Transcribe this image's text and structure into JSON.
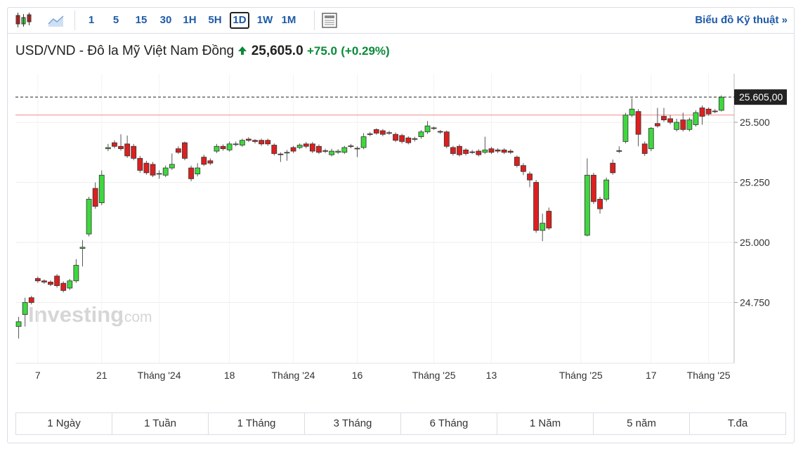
{
  "toolbar": {
    "intervals": [
      "1",
      "5",
      "15",
      "30",
      "1H",
      "5H",
      "1D",
      "1W",
      "1M"
    ],
    "selected_interval": 6,
    "link": "Biểu đồ Kỹ thuật",
    "link_icon": "»"
  },
  "header": {
    "name": "USD/VND - Đô la Mỹ Việt Nam Đồng",
    "price": "25,605.0",
    "change": "+75.0",
    "change_percent": "(+0.29%)"
  },
  "watermark": {
    "brand": "Investing",
    "suffix": ".com"
  },
  "chart_data": {
    "type": "candlestick",
    "open": [
      24650,
      24700,
      24770,
      24850,
      24840,
      24835,
      24860,
      24830,
      24810,
      24840,
      24975,
      25035,
      25225,
      25165,
      25390,
      25415,
      25400,
      25410,
      25400,
      25350,
      25330,
      25325,
      25285,
      25280,
      25310,
      25390,
      25415,
      25310,
      25285,
      25355,
      25340,
      25380,
      25400,
      25385,
      25408,
      25405,
      25430,
      25425,
      25425,
      25425,
      25405,
      25368,
      25373,
      25395,
      25395,
      25410,
      25410,
      25400,
      25382,
      25365,
      25375,
      25375,
      25402,
      25392,
      25395,
      25452,
      25470,
      25465,
      25457,
      25450,
      25445,
      25435,
      25432,
      25440,
      25460,
      25477,
      25462,
      25460,
      25395,
      25400,
      25385,
      25377,
      25380,
      25375,
      25390,
      25385,
      25385,
      25380,
      25355,
      25320,
      25285,
      25250,
      25050,
      25130,
      null,
      null,
      null,
      null,
      null,
      25030,
      25280,
      25180,
      25180,
      25330,
      25382,
      25420,
      25530,
      25545,
      25410,
      25390,
      25495,
      25525,
      25515,
      25470,
      25510,
      25470,
      25490,
      25560,
      25555,
      25547,
      25550
    ],
    "high": [
      24690,
      24770,
      24778,
      24858,
      24846,
      24842,
      24868,
      24838,
      24848,
      24930,
      25010,
      25190,
      25250,
      25300,
      25410,
      25425,
      25450,
      25445,
      25410,
      25360,
      25340,
      25335,
      25300,
      25320,
      25370,
      25400,
      25420,
      25320,
      25330,
      25365,
      25350,
      25410,
      25408,
      25420,
      25420,
      25432,
      25438,
      25430,
      25432,
      25432,
      25412,
      25375,
      25385,
      25402,
      25412,
      25418,
      25418,
      25408,
      25390,
      25390,
      25388,
      25402,
      25410,
      25400,
      25455,
      25460,
      25475,
      25472,
      25465,
      25458,
      25452,
      25442,
      25440,
      25468,
      25505,
      25482,
      25468,
      25466,
      25402,
      25408,
      25392,
      25385,
      25388,
      25440,
      25398,
      25392,
      25392,
      25388,
      25362,
      25330,
      25295,
      25260,
      25120,
      25145,
      null,
      null,
      null,
      null,
      null,
      25350,
      25290,
      25190,
      25270,
      25345,
      25400,
      25540,
      25600,
      25555,
      25420,
      25480,
      25560,
      25560,
      25530,
      25515,
      25540,
      25520,
      25550,
      25570,
      25562,
      25555,
      25612
    ],
    "low": [
      24600,
      24650,
      24742,
      24832,
      24828,
      24818,
      24812,
      24792,
      24802,
      24832,
      24900,
      25025,
      25140,
      25155,
      25380,
      25392,
      25382,
      25352,
      25342,
      25290,
      25282,
      25272,
      25265,
      25272,
      25302,
      25368,
      25342,
      25255,
      25275,
      25318,
      25322,
      25372,
      25382,
      25378,
      25400,
      25398,
      25418,
      25412,
      25402,
      25402,
      25362,
      25335,
      25340,
      25372,
      25388,
      25392,
      25372,
      25368,
      25372,
      25358,
      25368,
      25368,
      25392,
      25355,
      25388,
      25442,
      25448,
      25442,
      25448,
      25418,
      25412,
      25408,
      25420,
      25432,
      25452,
      25468,
      25452,
      25392,
      25362,
      25358,
      25362,
      25368,
      25358,
      25368,
      25368,
      25372,
      25368,
      25368,
      25312,
      25280,
      25230,
      25040,
      25005,
      25052,
      null,
      null,
      null,
      null,
      null,
      25025,
      25160,
      25120,
      25170,
      25282,
      25372,
      25412,
      25522,
      25400,
      25360,
      25380,
      25478,
      25502,
      25492,
      25462,
      25462,
      25462,
      25482,
      25490,
      25528,
      25538,
      25545
    ],
    "close": [
      24670,
      24750,
      24750,
      24840,
      24835,
      24825,
      24820,
      24800,
      24840,
      24905,
      24980,
      25180,
      25150,
      25280,
      25395,
      25400,
      25390,
      25360,
      25350,
      25300,
      25290,
      25280,
      25287,
      25310,
      25325,
      25375,
      25350,
      25265,
      25310,
      25325,
      25330,
      25400,
      25390,
      25410,
      25410,
      25425,
      25425,
      25420,
      25410,
      25410,
      25370,
      25365,
      25375,
      25380,
      25405,
      25400,
      25380,
      25375,
      25380,
      25380,
      25380,
      25395,
      25400,
      25390,
      25440,
      25450,
      25455,
      25450,
      25455,
      25425,
      25420,
      25415,
      25430,
      25460,
      25485,
      25475,
      25460,
      25400,
      25370,
      25365,
      25370,
      25375,
      25365,
      25385,
      25375,
      25380,
      25375,
      25375,
      25320,
      25295,
      25260,
      25050,
      25080,
      25060,
      null,
      null,
      null,
      null,
      null,
      25280,
      25170,
      25140,
      25260,
      25290,
      25380,
      25530,
      25555,
      25450,
      25370,
      25475,
      25485,
      25510,
      25500,
      25500,
      25470,
      25510,
      25540,
      25525,
      25535,
      25545,
      25605
    ],
    "up_color": "#3ed83e",
    "down_color": "#dd1f1f",
    "xlim": [
      -0.5,
      112
    ],
    "xticks": [
      {
        "value": 3,
        "label": "7"
      },
      {
        "value": 13,
        "label": "21"
      },
      {
        "value": 22,
        "label": "Tháng '24"
      },
      {
        "value": 33,
        "label": "18"
      },
      {
        "value": 43,
        "label": "Tháng '24"
      },
      {
        "value": 53,
        "label": "16"
      },
      {
        "value": 65,
        "label": "Tháng '25"
      },
      {
        "value": 74,
        "label": "13"
      },
      {
        "value": 88,
        "label": "Tháng '25"
      },
      {
        "value": 99,
        "label": "17"
      },
      {
        "value": 108,
        "label": "Tháng '25"
      }
    ],
    "ylim": [
      24497,
      25702
    ],
    "yticks": [
      {
        "value": 24750,
        "label": "24.750"
      },
      {
        "value": 25000,
        "label": "25.000"
      },
      {
        "value": 25250,
        "label": "25.250"
      },
      {
        "value": 25500,
        "label": "25.500"
      }
    ],
    "last_price": {
      "value": 25605,
      "label": "25.605,00"
    },
    "previous_close": 25530,
    "grid": true
  },
  "range_tabs": [
    "1 Ngày",
    "1 Tuần",
    "1 Tháng",
    "3 Tháng",
    "6 Tháng",
    "1 Năm",
    "5 năm",
    "T.đa"
  ]
}
